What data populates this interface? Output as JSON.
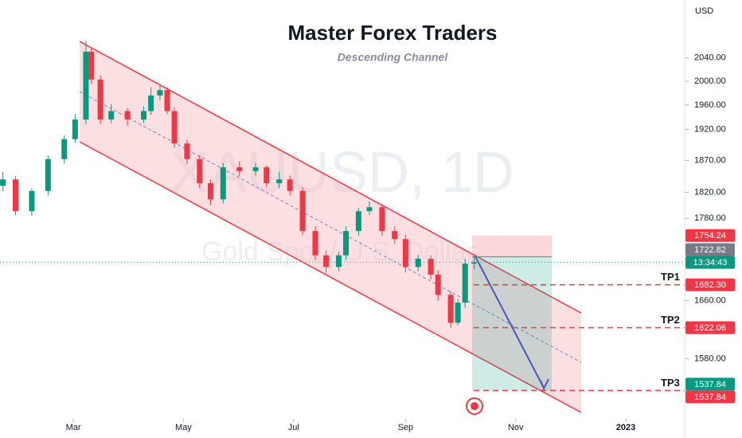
{
  "chart_data": {
    "type": "candlestick",
    "title": "Master Forex Traders",
    "subtitle": "Descending Channel",
    "watermark": [
      "XAUUSD, 1D",
      "Gold Spot / U.S. Dollar"
    ],
    "currency": "USD",
    "log_scale": true,
    "x": [
      20,
      27,
      36,
      45,
      54,
      60,
      66,
      69,
      74,
      80,
      89,
      98,
      102,
      107,
      111,
      115,
      122,
      129,
      135,
      142,
      151,
      160,
      166,
      173,
      179,
      186,
      193,
      199,
      206,
      210,
      217,
      223,
      230,
      237,
      243,
      250,
      257,
      261,
      268,
      272,
      276,
      281
    ],
    "open": [
      1830,
      1840,
      1791,
      1822,
      1872,
      1904,
      1936,
      2051,
      2003,
      1936,
      1950,
      1936,
      1950,
      1976,
      1985,
      1950,
      1897,
      1872,
      1834,
      1809,
      1859,
      1853,
      1859,
      1834,
      1840,
      1822,
      1761,
      1725,
      1708,
      1725,
      1761,
      1791,
      1797,
      1761,
      1749,
      1708,
      1720,
      1697,
      1668,
      1629,
      1657,
      1713
    ],
    "high": [
      1852,
      1845,
      1826,
      1878,
      1910,
      1945,
      2070,
      2058,
      2010,
      1962,
      1955,
      1958,
      1990,
      1992,
      1990,
      1956,
      1903,
      1878,
      1840,
      1866,
      1868,
      1866,
      1862,
      1852,
      1846,
      1828,
      1768,
      1732,
      1730,
      1768,
      1796,
      1806,
      1802,
      1768,
      1755,
      1726,
      1725,
      1703,
      1673,
      1662,
      1720,
      1724
    ],
    "low": [
      1822,
      1785,
      1784,
      1815,
      1865,
      1898,
      1928,
      1995,
      1928,
      1930,
      1926,
      1930,
      1944,
      1968,
      1945,
      1890,
      1864,
      1826,
      1800,
      1803,
      1845,
      1846,
      1828,
      1826,
      1815,
      1755,
      1718,
      1700,
      1702,
      1718,
      1754,
      1785,
      1754,
      1742,
      1700,
      1702,
      1690,
      1660,
      1622,
      1625,
      1650,
      1705
    ],
    "close": [
      1840,
      1791,
      1822,
      1872,
      1904,
      1936,
      2051,
      2003,
      1936,
      1950,
      1936,
      1950,
      1976,
      1985,
      1950,
      1897,
      1872,
      1834,
      1809,
      1859,
      1853,
      1859,
      1834,
      1840,
      1822,
      1761,
      1725,
      1708,
      1725,
      1761,
      1791,
      1797,
      1761,
      1749,
      1708,
      1720,
      1697,
      1668,
      1629,
      1657,
      1713,
      1715
    ],
    "up_color": "#089981",
    "down_color": "#f23645",
    "xlim": [
      18.4,
      397.6
    ],
    "ylim": [
      1477,
      2143
    ],
    "xticks": [
      {
        "value": 59,
        "label": "Mar"
      },
      {
        "value": 120,
        "label": "May"
      },
      {
        "value": 181,
        "label": "Jul"
      },
      {
        "value": 243,
        "label": "Sep"
      },
      {
        "value": 304,
        "label": "Nov"
      },
      {
        "value": 365,
        "label": "2023"
      }
    ],
    "yticks": [
      {
        "value": 2040,
        "label": "2040.00"
      },
      {
        "value": 2000,
        "label": "2000.00"
      },
      {
        "value": 1960,
        "label": "1960.00"
      },
      {
        "value": 1920,
        "label": "1920.00"
      },
      {
        "value": 1870,
        "label": "1870.00"
      },
      {
        "value": 1820,
        "label": "1820.00"
      },
      {
        "value": 1780,
        "label": "1780.00"
      },
      {
        "value": 1660,
        "label": "1660.00"
      },
      {
        "value": 1580,
        "label": "1580.00"
      }
    ],
    "price_tags": [
      {
        "value": 1754.24,
        "label": "1754.24",
        "color": "#f23645"
      },
      {
        "value": 1722.82,
        "label": "1722.82",
        "color": "#787b86"
      },
      {
        "value": 1537.84,
        "label": "1537.84",
        "color": "#089981"
      }
    ],
    "countdown": {
      "label": "13:34:43",
      "color": "#089981"
    },
    "targets": [
      {
        "name": "TP1",
        "value": 1682.3,
        "label": "1682.30",
        "color": "#f23645"
      },
      {
        "name": "TP2",
        "value": 1622.06,
        "label": "1622.06",
        "color": "#f23645"
      },
      {
        "name": "TP3",
        "value": 1537.84,
        "label": "1537.84",
        "color": "#f23645"
      }
    ]
  }
}
